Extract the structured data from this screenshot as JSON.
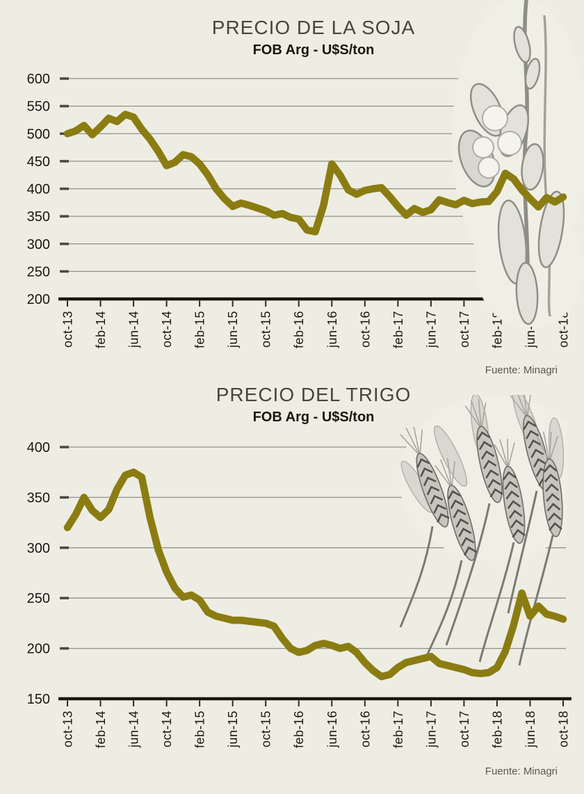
{
  "page": {
    "background": "#eeede3",
    "grid_color": "#92918a",
    "axis_color": "#17170e",
    "accent_color": "#8b7c12"
  },
  "chart_data": [
    {
      "type": "line",
      "title": "PRECIO DE LA SOJA",
      "subtitle": "FOB Arg - U$S/ton",
      "source": "Fuente: Minagri",
      "unit": "U$S/ton",
      "line_color": "#8b7c12",
      "grid": "on",
      "legend": "none",
      "ylim": [
        200,
        600
      ],
      "yticks": [
        600,
        550,
        500,
        450,
        400,
        350,
        300,
        250,
        200
      ],
      "x_tick_labels": [
        "oct-13",
        "feb-14",
        "jun-14",
        "oct-14",
        "feb-15",
        "jun-15",
        "oct-15",
        "feb-16",
        "jun-16",
        "oct-16",
        "feb-17",
        "jun-17",
        "oct-17",
        "feb-18",
        "jun-18",
        "oct-18"
      ],
      "categories": [
        "oct-13",
        "nov-13",
        "dic-13",
        "ene-14",
        "feb-14",
        "mar-14",
        "abr-14",
        "may-14",
        "jun-14",
        "jul-14",
        "ago-14",
        "sep-14",
        "oct-14",
        "nov-14",
        "dic-14",
        "ene-15",
        "feb-15",
        "mar-15",
        "abr-15",
        "may-15",
        "jun-15",
        "jul-15",
        "ago-15",
        "sep-15",
        "oct-15",
        "nov-15",
        "dic-15",
        "ene-16",
        "feb-16",
        "mar-16",
        "abr-16",
        "may-16",
        "jun-16",
        "jul-16",
        "ago-16",
        "sep-16",
        "oct-16",
        "nov-16",
        "dic-16",
        "ene-17",
        "feb-17",
        "mar-17",
        "abr-17",
        "may-17",
        "jun-17",
        "jul-17",
        "ago-17",
        "sep-17",
        "oct-17",
        "nov-17",
        "dic-17",
        "ene-18",
        "feb-18",
        "mar-18",
        "abr-18",
        "may-18",
        "jun-18",
        "jul-18",
        "ago-18",
        "sep-18",
        "oct-18"
      ],
      "values": [
        500,
        505,
        515,
        498,
        512,
        528,
        522,
        535,
        530,
        508,
        490,
        468,
        442,
        448,
        462,
        458,
        445,
        425,
        400,
        382,
        368,
        374,
        370,
        365,
        360,
        352,
        355,
        348,
        345,
        325,
        322,
        370,
        445,
        425,
        398,
        390,
        397,
        400,
        402,
        386,
        368,
        352,
        364,
        357,
        362,
        380,
        375,
        371,
        379,
        373,
        376,
        377,
        395,
        428,
        418,
        398,
        382,
        367,
        384,
        376,
        385
      ]
    },
    {
      "type": "line",
      "title": "PRECIO DEL TRIGO",
      "subtitle": "FOB Arg - U$S/ton",
      "source": "Fuente: Minagri",
      "unit": "U$S/ton",
      "line_color": "#8b7c12",
      "grid": "on",
      "legend": "none",
      "ylim": [
        150,
        400
      ],
      "yticks": [
        400,
        350,
        300,
        250,
        200,
        150
      ],
      "x_tick_labels": [
        "oct-13",
        "feb-14",
        "jun-14",
        "oct-14",
        "feb-15",
        "jun-15",
        "oct-15",
        "feb-16",
        "jun-16",
        "oct-16",
        "feb-17",
        "jun-17",
        "oct-17",
        "feb-18",
        "jun-18",
        "oct-18"
      ],
      "categories": [
        "oct-13",
        "nov-13",
        "dic-13",
        "ene-14",
        "feb-14",
        "mar-14",
        "abr-14",
        "may-14",
        "jun-14",
        "jul-14",
        "ago-14",
        "sep-14",
        "oct-14",
        "nov-14",
        "dic-14",
        "ene-15",
        "feb-15",
        "mar-15",
        "abr-15",
        "may-15",
        "jun-15",
        "jul-15",
        "ago-15",
        "sep-15",
        "oct-15",
        "nov-15",
        "dic-15",
        "ene-16",
        "feb-16",
        "mar-16",
        "abr-16",
        "may-16",
        "jun-16",
        "jul-16",
        "ago-16",
        "sep-16",
        "oct-16",
        "nov-16",
        "dic-16",
        "ene-17",
        "feb-17",
        "mar-17",
        "abr-17",
        "may-17",
        "jun-17",
        "jul-17",
        "ago-17",
        "sep-17",
        "oct-17",
        "nov-17",
        "dic-17",
        "ene-18",
        "feb-18",
        "mar-18",
        "abr-18",
        "may-18",
        "jun-18",
        "jul-18",
        "ago-18",
        "sep-18",
        "oct-18"
      ],
      "values": [
        320,
        333,
        350,
        337,
        330,
        338,
        358,
        372,
        375,
        370,
        330,
        298,
        276,
        260,
        251,
        253,
        248,
        236,
        232,
        230,
        228,
        228,
        227,
        226,
        225,
        222,
        210,
        200,
        196,
        198,
        203,
        205,
        203,
        200,
        202,
        196,
        186,
        178,
        172,
        174,
        181,
        186,
        188,
        190,
        192,
        185,
        183,
        181,
        179,
        176,
        175,
        176,
        181,
        197,
        223,
        255,
        232,
        242,
        234,
        232,
        229
      ]
    }
  ]
}
